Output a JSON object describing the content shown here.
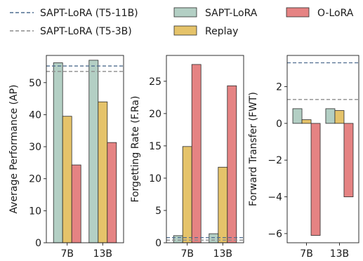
{
  "legend": {
    "entries": [
      {
        "label": "SAPT-LoRA (T5-11B)",
        "kind": "dashed",
        "color": "#4f6d8f"
      },
      {
        "label": "SAPT-LoRA (T5-3B)",
        "kind": "dashed",
        "color": "#8c8c8c"
      },
      {
        "label": "SAPT-LoRA",
        "kind": "patch",
        "color": "#b3cfc4"
      },
      {
        "label": "Replay",
        "kind": "patch",
        "color": "#e5c36a"
      },
      {
        "label": "O-LoRA",
        "kind": "patch",
        "color": "#e58383"
      }
    ]
  },
  "colors": {
    "sapt": "#b3cfc4",
    "replay": "#e5c36a",
    "olora": "#e58383",
    "t5_11b": "#4f6d8f",
    "t5_3b": "#8c8c8c",
    "axis": "#1a1a1a"
  },
  "chart_data": [
    {
      "type": "bar",
      "ylabel": "Average Performance (AP)",
      "categories": [
        "7B",
        "13B"
      ],
      "ylim": [
        0,
        58.5
      ],
      "yticks": [
        0,
        10,
        20,
        30,
        40,
        50
      ],
      "tick_labels": [
        "0",
        "10",
        "20",
        "30",
        "40",
        "50"
      ],
      "series": [
        {
          "name": "SAPT-LoRA",
          "values": [
            56.2,
            57.0
          ]
        },
        {
          "name": "Replay",
          "values": [
            39.5,
            44.0
          ]
        },
        {
          "name": "O-LoRA",
          "values": [
            24.3,
            31.3
          ]
        }
      ],
      "reference_lines": [
        {
          "name": "SAPT-LoRA (T5-11B)",
          "value": 55.2
        },
        {
          "name": "SAPT-LoRA (T5-3B)",
          "value": 53.5
        }
      ]
    },
    {
      "type": "bar",
      "ylabel": "Forgetting Rate (F.Ra)",
      "categories": [
        "7B",
        "13B"
      ],
      "ylim": [
        0,
        29
      ],
      "yticks": [
        0,
        5,
        10,
        15,
        20,
        25
      ],
      "tick_labels": [
        "0",
        "5",
        "10",
        "15",
        "20",
        "25"
      ],
      "series": [
        {
          "name": "SAPT-LoRA",
          "values": [
            1.1,
            1.4
          ]
        },
        {
          "name": "Replay",
          "values": [
            14.9,
            11.7
          ]
        },
        {
          "name": "O-LoRA",
          "values": [
            27.6,
            24.3
          ]
        }
      ],
      "reference_lines": [
        {
          "name": "SAPT-LoRA (T5-11B)",
          "value": 0.8
        },
        {
          "name": "SAPT-LoRA (T5-3B)",
          "value": 0.4
        }
      ]
    },
    {
      "type": "bar",
      "ylabel": "Forward Transfer (FWT)",
      "categories": [
        "7B",
        "13B"
      ],
      "ylim": [
        -6.5,
        3.7
      ],
      "yticks": [
        -6,
        -4,
        -2,
        0,
        2
      ],
      "tick_labels": [
        "−6",
        "−4",
        "−2",
        "0",
        "2"
      ],
      "series": [
        {
          "name": "SAPT-LoRA",
          "values": [
            0.8,
            0.8
          ]
        },
        {
          "name": "Replay",
          "values": [
            0.2,
            0.7
          ]
        },
        {
          "name": "O-LoRA",
          "values": [
            -6.1,
            -4.0
          ]
        }
      ],
      "reference_lines": [
        {
          "name": "SAPT-LoRA (T5-11B)",
          "value": 3.3
        },
        {
          "name": "SAPT-LoRA (T5-3B)",
          "value": 1.3
        }
      ]
    }
  ]
}
